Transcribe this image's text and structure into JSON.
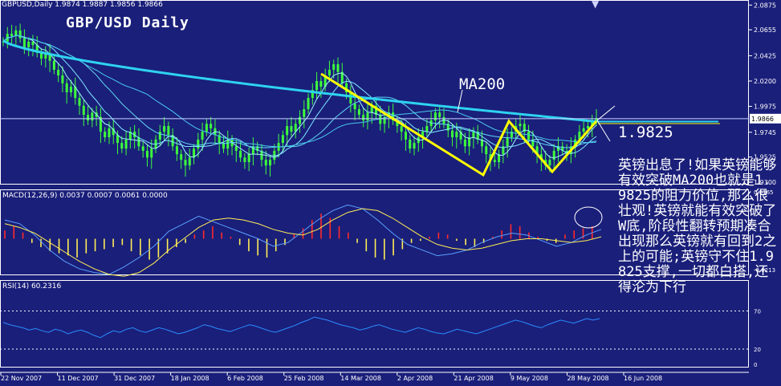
{
  "header": {
    "symbol_info": "GBPUSD,Daily  1.9874 1.9887 1.9856 1.9866",
    "chart_title": "GBP/USD Daily"
  },
  "annotations": {
    "ma_label": "MA200",
    "level_label": "1.9825",
    "commentary": "英镑出息了!如果英镑能够有效突破MA200也就是1.9825的阻力价位,那么很壮观!英镑就能有效突破了W底,阶段性翻转预期凑合出现那么英镑就有回到2之上的可能;英镑守不住1.9825支撑,一切都白搭,还得沦为下行"
  },
  "colors": {
    "background": "#1a1f7a",
    "candle": "#3cff3c",
    "ma200": "#2ed3f0",
    "trend": "#ffff00",
    "macd_pos": "#ff2a2a",
    "macd_neg": "#ffee55",
    "rsi": "#2a8cff",
    "signal": "#ffee55",
    "grid": "#ffffff"
  },
  "chart_data": [
    {
      "type": "candlestick",
      "title": "GBP/USD Daily",
      "x_labels": [
        "22 Nov 2007",
        "11 Dec 2007",
        "31 Dec 2007",
        "18 Jan 2008",
        "6 Feb 2008",
        "25 Feb 2008",
        "14 Mar 2008",
        "2 Apr 2008",
        "21 Apr 2008",
        "9 May 2008",
        "28 May 2008",
        "16 Jun 2008"
      ],
      "y_ticks": [
        "2.0875",
        "2.0655",
        "2.0425",
        "2.0200",
        "1.9975",
        "1.9745",
        "1.9525",
        "1.9300"
      ],
      "ylim": [
        1.928,
        2.092
      ],
      "last_price": "1.9866",
      "close": [
        2.055,
        2.062,
        2.06,
        2.065,
        2.058,
        2.05,
        2.055,
        2.052,
        2.045,
        2.04,
        2.045,
        2.038,
        2.03,
        2.025,
        2.018,
        2.01,
        2.015,
        2.005,
        1.998,
        1.99,
        1.985,
        1.992,
        1.988,
        1.975,
        1.97,
        1.978,
        1.972,
        1.965,
        1.96,
        1.968,
        1.975,
        1.97,
        1.962,
        1.958,
        1.952,
        1.96,
        1.968,
        1.975,
        1.98,
        1.972,
        1.962,
        1.955,
        1.95,
        1.945,
        1.952,
        1.96,
        1.968,
        1.975,
        1.982,
        1.978,
        1.972,
        1.965,
        1.96,
        1.968,
        1.962,
        1.958,
        1.952,
        1.948,
        1.955,
        1.962,
        1.958,
        1.95,
        1.945,
        1.95,
        1.958,
        1.965,
        1.972,
        1.98,
        1.975,
        1.982,
        1.988,
        1.995,
        2.005,
        2.012,
        2.02,
        2.015,
        2.025,
        2.03,
        2.035,
        2.028,
        2.018,
        2.01,
        2.0,
        1.995,
        1.99,
        1.985,
        1.992,
        1.998,
        1.99,
        1.982,
        1.988,
        1.992,
        1.985,
        1.98,
        1.975,
        1.968,
        1.96,
        1.965,
        1.97,
        1.975,
        1.98,
        1.985,
        1.992,
        1.988,
        1.982,
        1.976,
        1.97,
        1.975,
        1.968,
        1.962,
        1.97,
        1.975,
        1.968,
        1.962,
        1.955,
        1.95,
        1.948,
        1.955,
        1.962,
        1.97,
        1.975,
        1.98,
        1.982,
        1.975,
        1.968,
        1.962,
        1.955,
        1.95,
        1.945,
        1.95,
        1.958,
        1.962,
        1.958,
        1.955,
        1.962,
        1.968,
        1.975,
        1.978,
        1.98,
        1.984,
        1.987
      ]
    },
    {
      "type": "histogram",
      "title": "MACD(12,26,9) 0.0037 0.0007 0.0061 0.0000",
      "y_ticks": [
        "0.0165",
        "-0.0213"
      ],
      "values": [
        0.004,
        0.006,
        0.003,
        -0.002,
        -0.004,
        -0.006,
        -0.007,
        -0.008,
        -0.009,
        -0.007,
        -0.006,
        -0.005,
        -0.004,
        -0.003,
        -0.006,
        -0.008,
        -0.01,
        -0.009,
        -0.007,
        -0.004,
        -0.002,
        0.002,
        0.004,
        0.006,
        0.003,
        0.001,
        -0.003,
        -0.006,
        -0.008,
        -0.009,
        -0.006,
        -0.003,
        0.002,
        0.005,
        0.009,
        0.012,
        0.01,
        0.006,
        0.003,
        -0.002,
        -0.006,
        -0.009,
        -0.01,
        -0.008,
        -0.005,
        -0.002,
        -0.001,
        0.001,
        0.003,
        0.002,
        -0.001,
        -0.003,
        -0.004,
        -0.002,
        0.001,
        0.004,
        0.007,
        0.006,
        0.003,
        0.001,
        -0.001,
        -0.002,
        0.002,
        0.004,
        0.005,
        0.006
      ],
      "series": [
        {
          "name": "MACD",
          "values": [
            0.01,
            0.008,
            0.002,
            -0.006,
            -0.012,
            -0.016,
            -0.018,
            -0.019,
            -0.015,
            -0.01,
            -0.004,
            0.004,
            0.008,
            0.012,
            0.009,
            0.006,
            0.003,
            0.0,
            -0.004,
            -0.002,
            0.004,
            0.01,
            0.015,
            0.018,
            0.016,
            0.01,
            0.003,
            -0.003,
            -0.006,
            -0.009,
            -0.008,
            -0.006,
            -0.002,
            0.001,
            0.003,
            0.002,
            -0.001,
            -0.004,
            -0.002,
            0.002,
            0.005
          ]
        },
        {
          "name": "Signal",
          "values": [
            0.008,
            0.006,
            0.003,
            -0.002,
            -0.007,
            -0.012,
            -0.016,
            -0.019,
            -0.02,
            -0.018,
            -0.013,
            -0.006,
            0.0,
            0.006,
            0.01,
            0.011,
            0.01,
            0.008,
            0.005,
            0.003,
            0.002,
            0.005,
            0.01,
            0.014,
            0.016,
            0.015,
            0.011,
            0.006,
            0.001,
            -0.003,
            -0.005,
            -0.006,
            -0.005,
            -0.003,
            -0.001,
            0.0,
            0.0,
            -0.001,
            -0.002,
            -0.001,
            0.001
          ]
        }
      ]
    },
    {
      "type": "line",
      "title": "RSI(14) 60.2316",
      "y_ticks": [
        "70",
        "20",
        "0"
      ],
      "ylim": [
        0,
        100
      ],
      "values": [
        55,
        52,
        50,
        48,
        45,
        47,
        44,
        42,
        46,
        44,
        40,
        43,
        45,
        42,
        38,
        35,
        40,
        44,
        42,
        46,
        48,
        44,
        42,
        45,
        48,
        46,
        43,
        40,
        42,
        45,
        48,
        52,
        50,
        47,
        45,
        43,
        46,
        49,
        52,
        50,
        47,
        44,
        42,
        45,
        48,
        51,
        55,
        58,
        62,
        60,
        58,
        55,
        52,
        50,
        48,
        45,
        47,
        50,
        52,
        49,
        46,
        44,
        42,
        45,
        48,
        46,
        43,
        41,
        40,
        43,
        46,
        44,
        42,
        40,
        43,
        46,
        49,
        52,
        55,
        58,
        56,
        53,
        50,
        48,
        52,
        55,
        58,
        56,
        54,
        57,
        60,
        58,
        60
      ]
    }
  ]
}
